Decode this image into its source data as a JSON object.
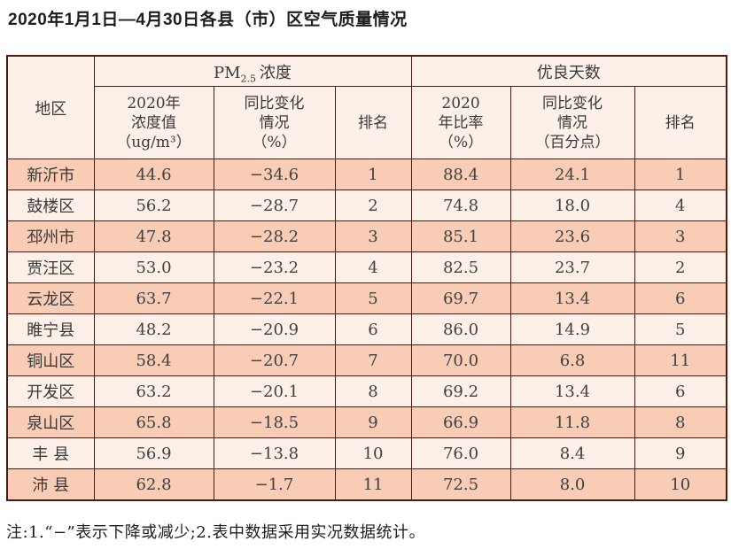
{
  "page_title": "2020年1月1日—4月30日各县（市）区空气质量情况",
  "colors": {
    "border": "#4e190e",
    "row_peach": "#f8ccb5",
    "row_light": "#fdf0e9",
    "header_bg": "#fcf0e8",
    "text": "#414141"
  },
  "table": {
    "region_header": "地区",
    "pm_group": {
      "prefix": "PM",
      "subscript": "2.5",
      "suffix": "浓度"
    },
    "days_group": "优良天数",
    "sub_headers": [
      {
        "lines": [
          "2020年",
          "浓度值",
          "（ug/m³）"
        ]
      },
      {
        "lines": [
          "同比变化",
          "情况",
          "（%）"
        ]
      },
      {
        "lines": [
          "排名"
        ]
      },
      {
        "lines": [
          "2020",
          "年比率",
          "（%）"
        ]
      },
      {
        "lines": [
          "同比变化",
          "情况",
          "（百分点）"
        ]
      },
      {
        "lines": [
          "排名"
        ]
      }
    ],
    "rows": [
      {
        "region": "新沂市",
        "pm_value": "44.6",
        "pm_change": "−34.6",
        "pm_rank": "1",
        "days_rate": "88.4",
        "days_change": "24.1",
        "days_rank": "1"
      },
      {
        "region": "鼓楼区",
        "pm_value": "56.2",
        "pm_change": "−28.7",
        "pm_rank": "2",
        "days_rate": "74.8",
        "days_change": "18.0",
        "days_rank": "4"
      },
      {
        "region": "邳州市",
        "pm_value": "47.8",
        "pm_change": "−28.2",
        "pm_rank": "3",
        "days_rate": "85.1",
        "days_change": "23.6",
        "days_rank": "3"
      },
      {
        "region": "贾汪区",
        "pm_value": "53.0",
        "pm_change": "−23.2",
        "pm_rank": "4",
        "days_rate": "82.5",
        "days_change": "23.7",
        "days_rank": "2"
      },
      {
        "region": "云龙区",
        "pm_value": "63.7",
        "pm_change": "−22.1",
        "pm_rank": "5",
        "days_rate": "69.7",
        "days_change": "13.4",
        "days_rank": "6"
      },
      {
        "region": "睢宁县",
        "pm_value": "48.2",
        "pm_change": "−20.9",
        "pm_rank": "6",
        "days_rate": "86.0",
        "days_change": "14.9",
        "days_rank": "5"
      },
      {
        "region": "铜山区",
        "pm_value": "58.4",
        "pm_change": "−20.7",
        "pm_rank": "7",
        "days_rate": "70.0",
        "days_change": "6.8",
        "days_rank": "11"
      },
      {
        "region": "开发区",
        "pm_value": "63.2",
        "pm_change": "−20.1",
        "pm_rank": "8",
        "days_rate": "69.2",
        "days_change": "13.4",
        "days_rank": "6"
      },
      {
        "region": "泉山区",
        "pm_value": "65.8",
        "pm_change": "−18.5",
        "pm_rank": "9",
        "days_rate": "66.9",
        "days_change": "11.8",
        "days_rank": "8"
      },
      {
        "region": "丰 县",
        "pm_value": "56.9",
        "pm_change": "−13.8",
        "pm_rank": "10",
        "days_rate": "76.0",
        "days_change": "8.4",
        "days_rank": "9"
      },
      {
        "region": "沛 县",
        "pm_value": "62.8",
        "pm_change": "−1.7",
        "pm_rank": "11",
        "days_rate": "72.5",
        "days_change": "8.0",
        "days_rank": "10"
      }
    ]
  },
  "note": "注:1.“−”表示下降或减少;2.表中数据采用实况数据统计。"
}
